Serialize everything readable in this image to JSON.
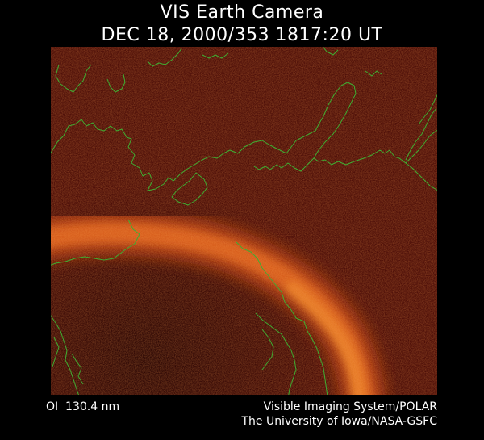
{
  "title": {
    "line1": "VIS Earth Camera",
    "line2": "DEC 18, 2000/353 1817:20 UT"
  },
  "footer": {
    "wavelength": "OI  130.4 nm",
    "instrument": "Visible Imaging System/POLAR",
    "institution": "The University of Iowa/NASA-GSFC"
  },
  "colors": {
    "background": "#000000",
    "image_base": "#4a0c07",
    "aurora": "#e0651c",
    "coastline": "#3fae32",
    "text": "#ffffff"
  }
}
